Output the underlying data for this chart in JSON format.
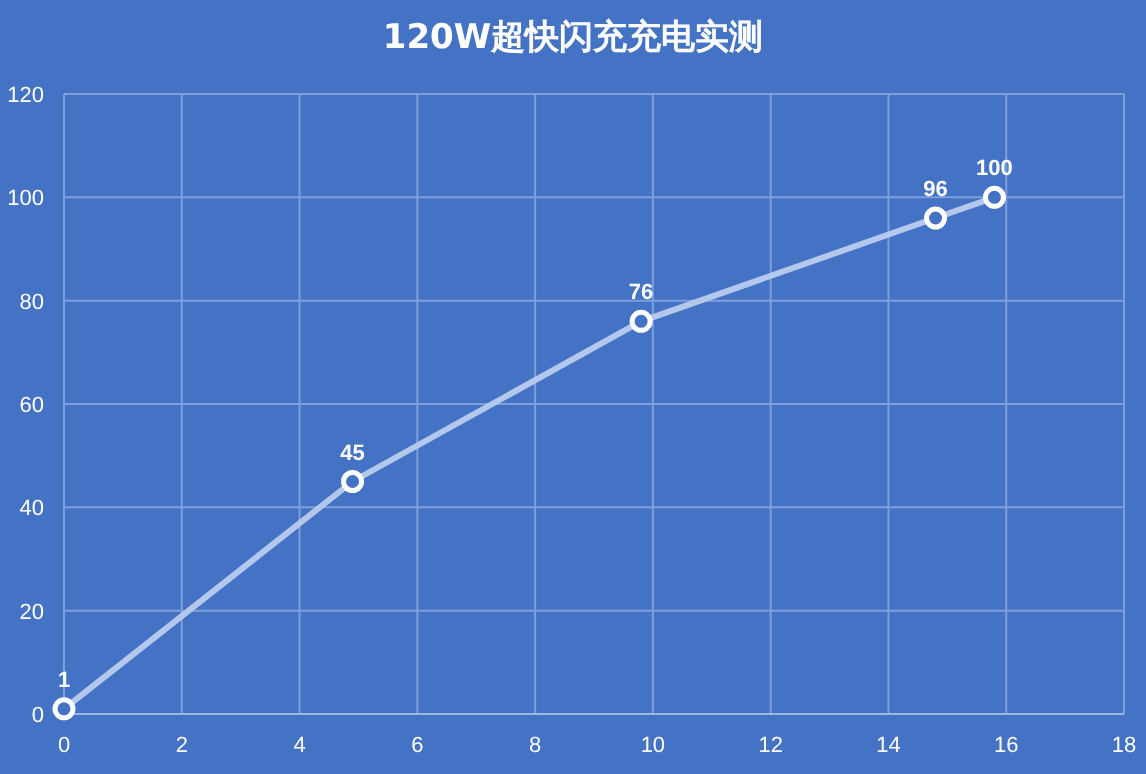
{
  "chart_data": {
    "type": "line",
    "title": "120W超快闪充充电实测",
    "x": [
      0,
      4.9,
      9.8,
      14.8,
      15.8
    ],
    "series": [
      {
        "color": "#b4c7ec",
        "values": [
          1,
          45,
          76,
          96,
          100
        ]
      }
    ],
    "xlim": [
      0,
      18
    ],
    "xticks": [
      0,
      2,
      4,
      6,
      8,
      10,
      12,
      14,
      16,
      18
    ],
    "ylim": [
      0,
      120
    ],
    "yticks": [
      0,
      20,
      40,
      60,
      80,
      100,
      120
    ],
    "grid": true,
    "marker": "circle",
    "data_labels": true
  }
}
